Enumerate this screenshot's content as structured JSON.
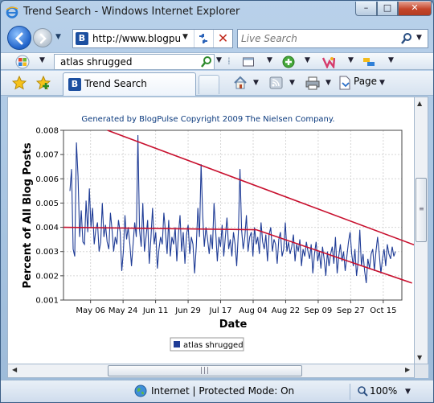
{
  "window": {
    "title": "Trend Search - Windows Internet Explorer",
    "minimize_glyph": "–",
    "maximize_glyph": "□",
    "close_glyph": "✕"
  },
  "address_bar": {
    "favicon_letter": "B",
    "url": "http://www.blogpu"
  },
  "live_search": {
    "placeholder": "Live Search"
  },
  "search_toolbar": {
    "query": "atlas shrugged"
  },
  "tab": {
    "favicon_letter": "B",
    "label": "Trend Search"
  },
  "command_bar": {
    "page_label": "Page"
  },
  "status_bar": {
    "text": "Internet | Protected Mode: On",
    "zoom": "100%"
  },
  "colors": {
    "series_line": "#1f3c96",
    "trend_line": "#c8102e",
    "header_text": "#0b3a7e"
  },
  "chart_data": {
    "type": "line",
    "header": "Generated by BlogPulse Copyright 2009 The Nielsen Company.",
    "xlabel": "Date",
    "ylabel": "Percent of All Blog Posts",
    "ylim": [
      0.001,
      0.008
    ],
    "x_tick_labels": [
      "May 06",
      "May 24",
      "Jun 11",
      "Jun 29",
      "Jul 17",
      "Aug 04",
      "Aug 22",
      "Sep 09",
      "Sep 27",
      "Oct 15"
    ],
    "y_tick_labels": [
      "0.008",
      "0.007",
      "0.006",
      "0.005",
      "0.004",
      "0.003",
      "0.002",
      "0.001"
    ],
    "y_ticks": [
      0.008,
      0.007,
      0.006,
      0.005,
      0.004,
      0.003,
      0.002,
      0.001
    ],
    "grid": true,
    "legend_position": "bottom-center",
    "series": [
      {
        "name": "atlas shrugged",
        "values": [
          0.0055,
          0.0064,
          0.0031,
          0.0028,
          0.0075,
          0.0061,
          0.0036,
          0.0047,
          0.0034,
          0.0033,
          0.0051,
          0.0038,
          0.0056,
          0.004,
          0.0048,
          0.0033,
          0.0039,
          0.0042,
          0.003,
          0.0034,
          0.005,
          0.0036,
          0.0041,
          0.0034,
          0.0031,
          0.0046,
          0.0039,
          0.003,
          0.0036,
          0.0033,
          0.0043,
          0.0038,
          0.0022,
          0.003,
          0.0045,
          0.0035,
          0.004,
          0.0033,
          0.0024,
          0.0033,
          0.0042,
          0.0036,
          0.0078,
          0.0039,
          0.0032,
          0.005,
          0.003,
          0.0036,
          0.0043,
          0.0025,
          0.0035,
          0.0048,
          0.0033,
          0.0038,
          0.0023,
          0.0031,
          0.0036,
          0.0033,
          0.0046,
          0.0038,
          0.0029,
          0.0043,
          0.0028,
          0.0036,
          0.0033,
          0.004,
          0.0026,
          0.0037,
          0.0045,
          0.003,
          0.0038,
          0.0025,
          0.0037,
          0.0041,
          0.0029,
          0.0036,
          0.0033,
          0.0021,
          0.0032,
          0.0048,
          0.0036,
          0.0066,
          0.0045,
          0.0032,
          0.004,
          0.0035,
          0.0029,
          0.0037,
          0.0031,
          0.005,
          0.0039,
          0.0026,
          0.0036,
          0.0032,
          0.0041,
          0.0028,
          0.0036,
          0.0044,
          0.0031,
          0.0035,
          0.0028,
          0.0038,
          0.0033,
          0.0024,
          0.0038,
          0.0064,
          0.0039,
          0.0031,
          0.0036,
          0.0045,
          0.003,
          0.0036,
          0.0038,
          0.0028,
          0.004,
          0.0033,
          0.0036,
          0.0029,
          0.0042,
          0.0034,
          0.0031,
          0.0037,
          0.0026,
          0.0037,
          0.004,
          0.003,
          0.0035,
          0.0033,
          0.0025,
          0.0035,
          0.0038,
          0.0028,
          0.0031,
          0.0042,
          0.003,
          0.0034,
          0.0029,
          0.0032,
          0.0037,
          0.0026,
          0.0033,
          0.003,
          0.0035,
          0.0024,
          0.0031,
          0.0028,
          0.0034,
          0.003,
          0.0027,
          0.0033,
          0.0021,
          0.0029,
          0.0034,
          0.0026,
          0.003,
          0.0023,
          0.0032,
          0.0027,
          0.002,
          0.003,
          0.0024,
          0.0029,
          0.0032,
          0.0025,
          0.0036,
          0.0021,
          0.0028,
          0.0033,
          0.0026,
          0.003,
          0.0022,
          0.0028,
          0.0034,
          0.0038,
          0.0029,
          0.0024,
          0.0031,
          0.002,
          0.0026,
          0.0039,
          0.0024,
          0.0029,
          0.0022,
          0.0017,
          0.0027,
          0.0023,
          0.0029,
          0.0031,
          0.0022,
          0.003,
          0.0036,
          0.0029,
          0.0021,
          0.0027,
          0.0031,
          0.0024,
          0.0033,
          0.0029,
          0.0027,
          0.0032,
          0.0028,
          0.003
        ]
      }
    ],
    "trend_lines": [
      {
        "x_start_fraction": 0.13,
        "y_start": 0.008,
        "x_end_fraction": 1.07,
        "y_end": 0.0031
      },
      {
        "x_start_fraction": 0.0,
        "y_start": 0.004,
        "x_end_fraction": 0.57,
        "y_end": 0.0039
      },
      {
        "x_start_fraction": 0.57,
        "y_start": 0.0039,
        "x_end_fraction": 1.03,
        "y_end": 0.0017
      }
    ]
  }
}
